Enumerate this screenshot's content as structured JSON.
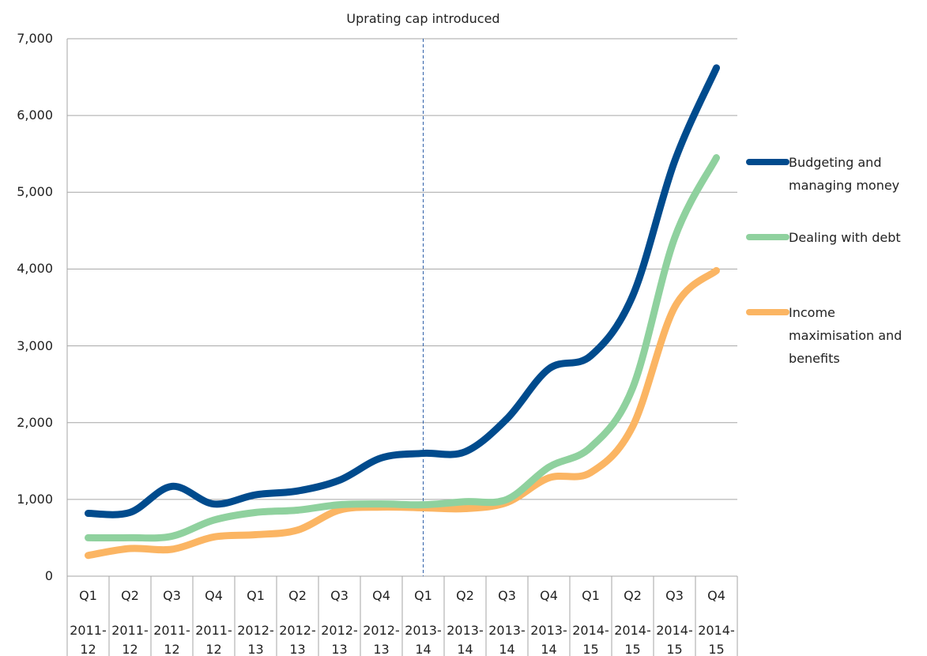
{
  "chart_data": {
    "type": "line",
    "annotation": {
      "text": "Uprating cap introduced",
      "at": 8
    },
    "categories": [
      [
        "Q1",
        "2011-12"
      ],
      [
        "Q2",
        "2011-12"
      ],
      [
        "Q3",
        "2011-12"
      ],
      [
        "Q4",
        "2011-12"
      ],
      [
        "Q1",
        "2012-13"
      ],
      [
        "Q2",
        "2012-13"
      ],
      [
        "Q3",
        "2012-13"
      ],
      [
        "Q4",
        "2012-13"
      ],
      [
        "Q1",
        "2013-14"
      ],
      [
        "Q2",
        "2013-14"
      ],
      [
        "Q3",
        "2013-14"
      ],
      [
        "Q4",
        "2013-14"
      ],
      [
        "Q1",
        "2014-15"
      ],
      [
        "Q2",
        "2014-15"
      ],
      [
        "Q3",
        "2014-15"
      ],
      [
        "Q4",
        "2014-15"
      ]
    ],
    "series": [
      {
        "name": "Budgeting and managing money",
        "color": "#004b8d",
        "values": [
          818,
          830,
          1170,
          940,
          1060,
          1110,
          1250,
          1540,
          1600,
          1620,
          2050,
          2700,
          2870,
          3650,
          5400,
          6620
        ]
      },
      {
        "name": "Dealing with debt",
        "color": "#8fd19e",
        "values": [
          500,
          500,
          520,
          730,
          830,
          860,
          930,
          940,
          930,
          970,
          1000,
          1420,
          1680,
          2450,
          4400,
          5450
        ]
      },
      {
        "name": "Income maximisation and benefits",
        "color": "#fbb563",
        "values": [
          270,
          360,
          350,
          510,
          540,
          600,
          860,
          900,
          890,
          880,
          960,
          1280,
          1350,
          1950,
          3500,
          3980
        ]
      }
    ],
    "ylim": [
      0,
      7000
    ],
    "yticks": [
      0,
      {
        "value": 1000,
        "label": "1,000"
      },
      {
        "value": 2000,
        "label": "2,000"
      },
      {
        "value": 3000,
        "label": "3,000"
      },
      {
        "value": 4000,
        "label": "4,000"
      },
      {
        "value": 5000,
        "label": "5,000"
      },
      {
        "value": 6000,
        "label": "6,000"
      },
      {
        "value": 7000,
        "label": "7,000"
      }
    ],
    "grid": true,
    "legend": "right"
  }
}
